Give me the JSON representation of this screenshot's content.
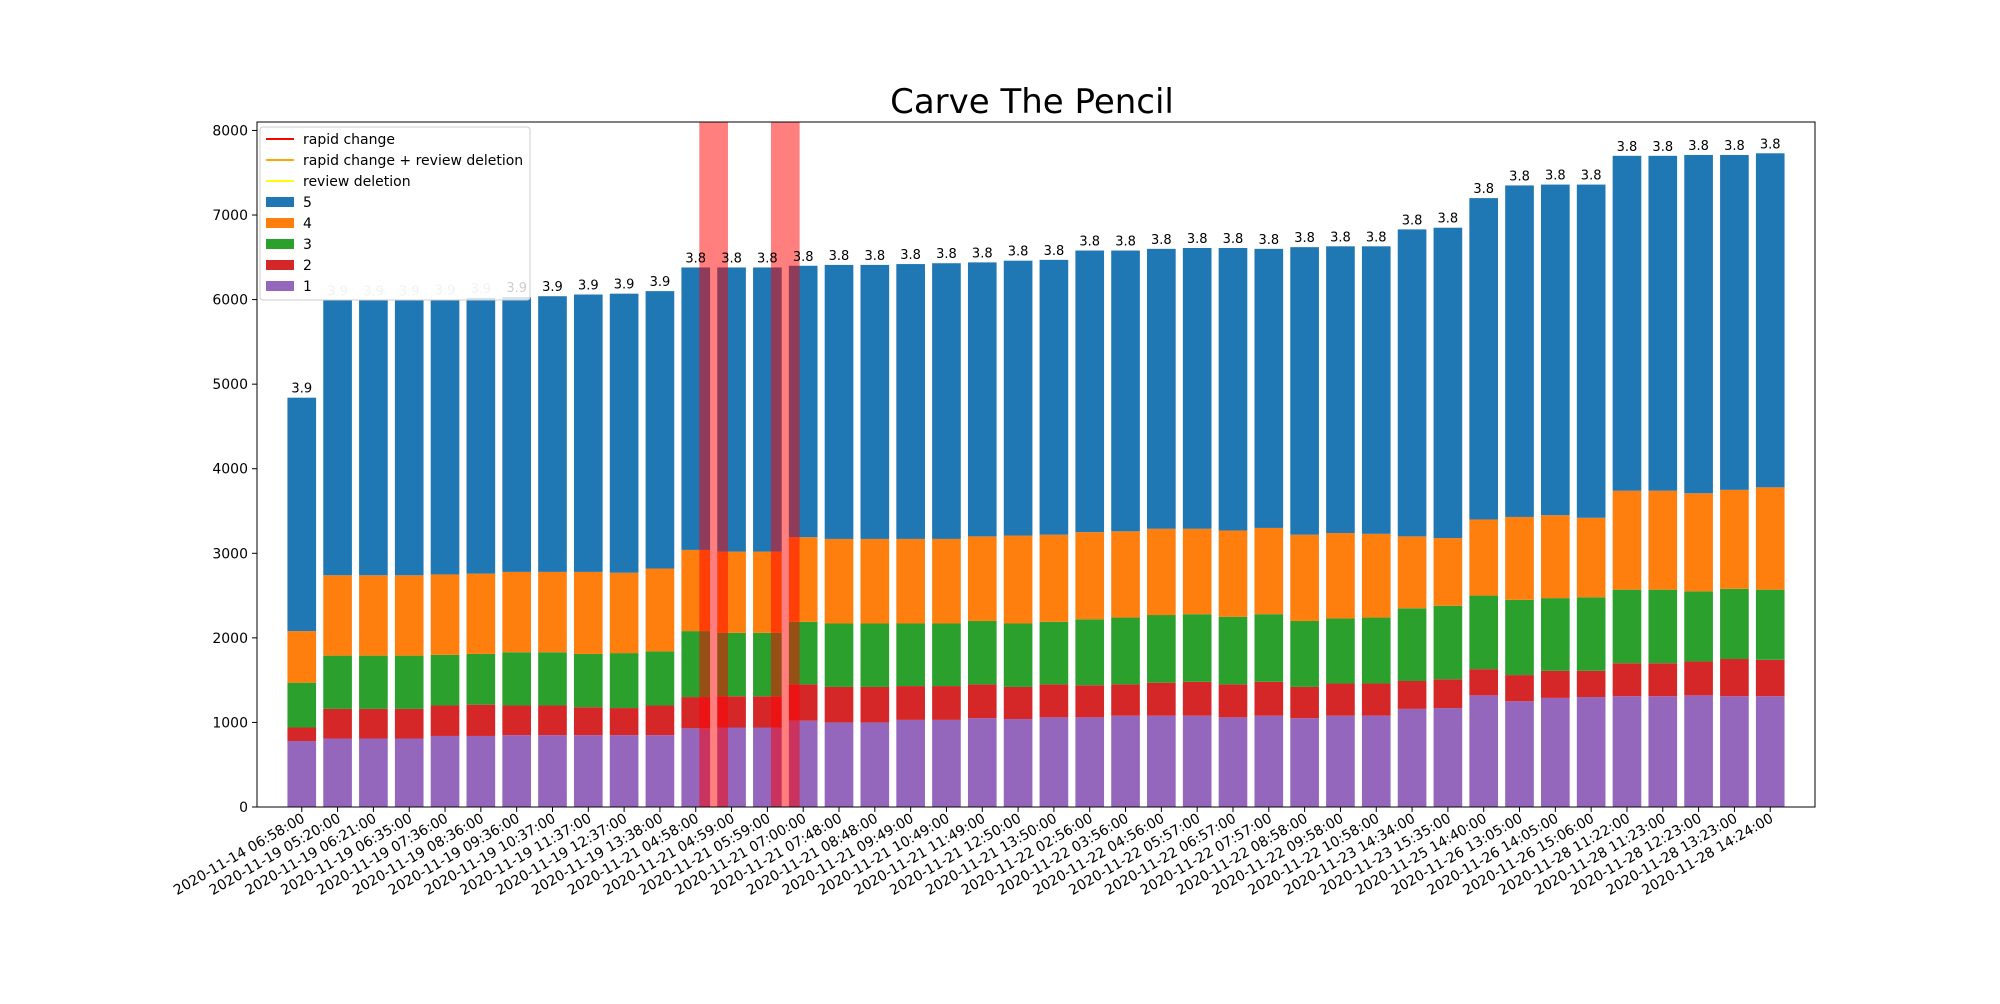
{
  "chart_data": {
    "type": "bar",
    "stacked": true,
    "title": "Carve The Pencil",
    "xlabel": "",
    "ylabel": "",
    "ylim": [
      0,
      8100
    ],
    "yticks": [
      0,
      1000,
      2000,
      3000,
      4000,
      5000,
      6000,
      7000,
      8000
    ],
    "grid": false,
    "legend_position": "top-left",
    "categories": [
      "2020-11-14 06:58:00",
      "2020-11-19 05:20:00",
      "2020-11-19 06:21:00",
      "2020-11-19 06:35:00",
      "2020-11-19 07:36:00",
      "2020-11-19 08:36:00",
      "2020-11-19 09:36:00",
      "2020-11-19 10:37:00",
      "2020-11-19 11:37:00",
      "2020-11-19 12:37:00",
      "2020-11-19 13:38:00",
      "2020-11-21 04:58:00",
      "2020-11-21 04:59:00",
      "2020-11-21 05:59:00",
      "2020-11-21 07:00:00",
      "2020-11-21 07:48:00",
      "2020-11-21 08:48:00",
      "2020-11-21 09:49:00",
      "2020-11-21 10:49:00",
      "2020-11-21 11:49:00",
      "2020-11-21 12:50:00",
      "2020-11-21 13:50:00",
      "2020-11-22 02:56:00",
      "2020-11-22 03:56:00",
      "2020-11-22 04:56:00",
      "2020-11-22 05:57:00",
      "2020-11-22 06:57:00",
      "2020-11-22 07:57:00",
      "2020-11-22 08:58:00",
      "2020-11-22 09:58:00",
      "2020-11-22 10:58:00",
      "2020-11-23 14:34:00",
      "2020-11-23 15:35:00",
      "2020-11-25 14:40:00",
      "2020-11-26 13:05:00",
      "2020-11-26 14:05:00",
      "2020-11-26 15:06:00",
      "2020-11-28 11:22:00",
      "2020-11-28 11:23:00",
      "2020-11-28 12:23:00",
      "2020-11-28 13:23:00",
      "2020-11-28 14:24:00"
    ],
    "series": [
      {
        "name": "1",
        "color": "#9467bd",
        "values": [
          780,
          810,
          810,
          810,
          840,
          840,
          850,
          850,
          850,
          850,
          850,
          930,
          940,
          940,
          1020,
          1000,
          1000,
          1030,
          1030,
          1050,
          1040,
          1060,
          1060,
          1080,
          1080,
          1080,
          1060,
          1080,
          1050,
          1080,
          1080,
          1160,
          1170,
          1320,
          1250,
          1290,
          1300,
          1310,
          1310,
          1320,
          1310,
          1310
        ]
      },
      {
        "name": "2",
        "color": "#d62728",
        "values": [
          160,
          350,
          350,
          350,
          360,
          370,
          350,
          350,
          330,
          320,
          350,
          370,
          370,
          370,
          430,
          420,
          420,
          400,
          400,
          400,
          380,
          390,
          380,
          370,
          390,
          400,
          390,
          400,
          370,
          380,
          380,
          330,
          340,
          310,
          310,
          320,
          310,
          390,
          390,
          400,
          440,
          430
        ]
      },
      {
        "name": "3",
        "color": "#2ca02c",
        "values": [
          530,
          630,
          630,
          630,
          600,
          600,
          630,
          630,
          630,
          650,
          640,
          780,
          750,
          750,
          740,
          750,
          750,
          740,
          740,
          750,
          750,
          740,
          780,
          790,
          800,
          800,
          800,
          800,
          780,
          770,
          780,
          860,
          870,
          870,
          890,
          860,
          870,
          870,
          870,
          830,
          830,
          830
        ]
      },
      {
        "name": "4",
        "color": "#ff7f0e",
        "values": [
          610,
          950,
          950,
          950,
          950,
          950,
          950,
          950,
          970,
          950,
          980,
          960,
          960,
          960,
          1000,
          1000,
          1000,
          1000,
          1000,
          1000,
          1040,
          1030,
          1030,
          1020,
          1020,
          1010,
          1020,
          1020,
          1020,
          1010,
          990,
          850,
          800,
          900,
          980,
          980,
          940,
          1170,
          1170,
          1160,
          1170,
          1210
        ]
      },
      {
        "name": "5",
        "color": "#1f77b4",
        "values": [
          2760,
          3250,
          3250,
          3250,
          3250,
          3260,
          3250,
          3260,
          3280,
          3300,
          3280,
          3340,
          3360,
          3360,
          3210,
          3240,
          3240,
          3250,
          3260,
          3240,
          3250,
          3250,
          3330,
          3320,
          3310,
          3320,
          3340,
          3300,
          3400,
          3390,
          3400,
          3630,
          3670,
          3800,
          3920,
          3910,
          3940,
          3960,
          3960,
          4000,
          3960,
          3950
        ]
      }
    ],
    "bar_labels": [
      "3.9",
      "3.9",
      "3.9",
      "3.9",
      "3.9",
      "3.9",
      "3.9",
      "3.9",
      "3.9",
      "3.9",
      "3.9",
      "3.8",
      "3.8",
      "3.8",
      "3.8",
      "3.8",
      "3.8",
      "3.8",
      "3.8",
      "3.8",
      "3.8",
      "3.8",
      "3.8",
      "3.8",
      "3.8",
      "3.8",
      "3.8",
      "3.8",
      "3.8",
      "3.8",
      "3.8",
      "3.8",
      "3.8",
      "3.8",
      "3.8",
      "3.8",
      "3.8",
      "3.8",
      "3.8",
      "3.8",
      "3.8",
      "3.8"
    ],
    "bar_label_faded": [
      false,
      true,
      true,
      true,
      true,
      true,
      false,
      false,
      false,
      false,
      false,
      false,
      false,
      false,
      false,
      false,
      false,
      false,
      false,
      false,
      false,
      false,
      false,
      false,
      false,
      false,
      false,
      false,
      false,
      false,
      false,
      false,
      false,
      false,
      false,
      false,
      false,
      false,
      false,
      false,
      false,
      false
    ],
    "highlight_spans": [
      {
        "type": "rapid change",
        "color": "#ff0000",
        "opacity": 0.5,
        "center": 11.5,
        "width": 1
      },
      {
        "type": "rapid change",
        "color": "#ff0000",
        "opacity": 0.5,
        "center": 13.5,
        "width": 1
      }
    ],
    "legend": [
      {
        "label": "rapid change",
        "kind": "line",
        "color": "#ff0000"
      },
      {
        "label": "rapid change + review deletion",
        "kind": "line",
        "color": "#ffa500"
      },
      {
        "label": "review deletion",
        "kind": "line",
        "color": "#ffff00"
      },
      {
        "label": "5",
        "kind": "patch",
        "color": "#1f77b4"
      },
      {
        "label": "4",
        "kind": "patch",
        "color": "#ff7f0e"
      },
      {
        "label": "3",
        "kind": "patch",
        "color": "#2ca02c"
      },
      {
        "label": "2",
        "kind": "patch",
        "color": "#d62728"
      },
      {
        "label": "1",
        "kind": "patch",
        "color": "#9467bd"
      }
    ]
  }
}
